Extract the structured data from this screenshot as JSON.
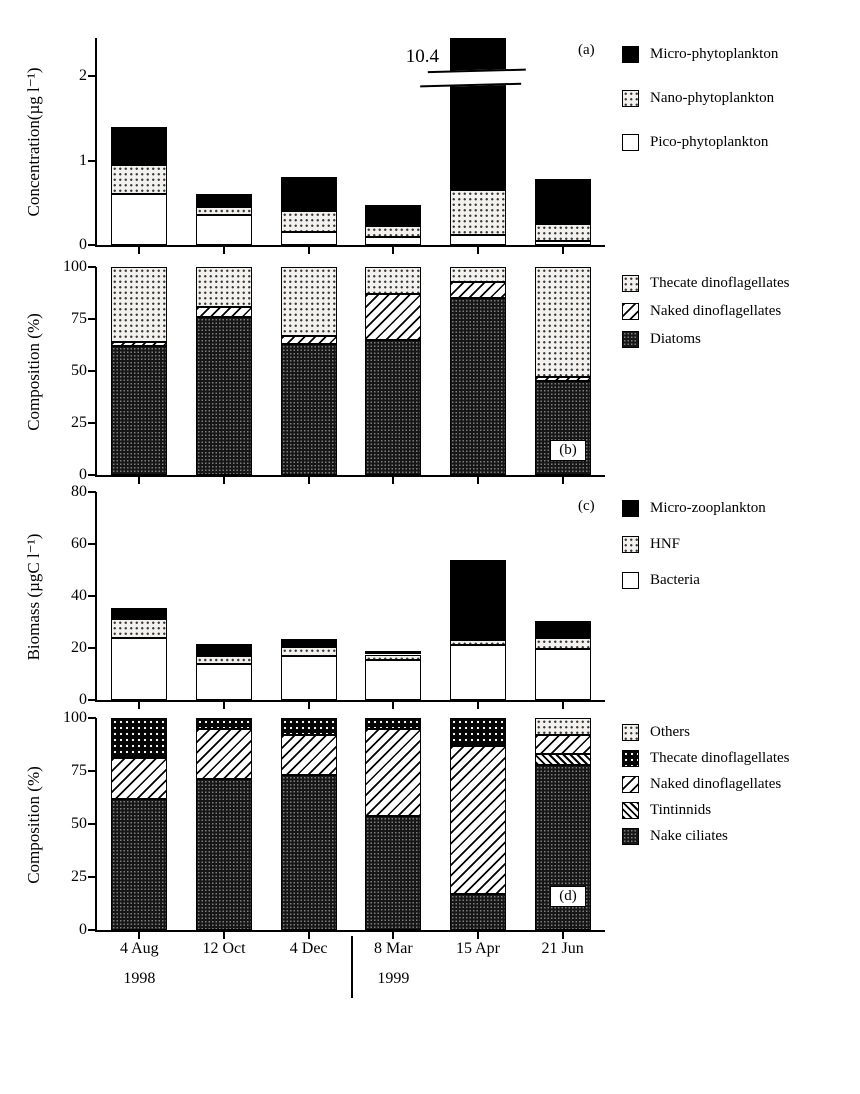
{
  "figure": {
    "background": "#ffffff",
    "panel_labels": {
      "a": "(a)",
      "b": "(b)",
      "c": "(c)",
      "d": "(d)"
    }
  },
  "x_axis": {
    "categories": [
      "4 Aug",
      "12 Oct",
      "4 Dec",
      "8 Mar",
      "15 Apr",
      "21 Jun"
    ],
    "year_groups": [
      {
        "label": "1998",
        "anchor_category_index": 0
      },
      {
        "label": "1999",
        "anchor_category_index": 3
      }
    ]
  },
  "chart_data": [
    {
      "type": "bar",
      "stacked": true,
      "panel": "a",
      "ylabel": "Concentration(µg l⁻¹)",
      "ylim": [
        0,
        2.45
      ],
      "yticks": [
        0,
        1,
        2
      ],
      "grid": false,
      "legend_position": "right",
      "categories": [
        "4 Aug",
        "12 Oct",
        "4 Dec",
        "8 Mar",
        "15 Apr",
        "21 Jun"
      ],
      "series": [
        {
          "name": "Pico-phytoplankton",
          "pattern": "white",
          "values": [
            0.6,
            0.35,
            0.15,
            0.1,
            0.12,
            0.05
          ]
        },
        {
          "name": "Nano-phytoplankton",
          "pattern": "stipple",
          "values": [
            0.35,
            0.1,
            0.25,
            0.12,
            0.53,
            0.2
          ]
        },
        {
          "name": "Micro-phytoplankton",
          "pattern": "black",
          "values": [
            0.45,
            0.15,
            0.4,
            0.25,
            9.75,
            0.53
          ]
        }
      ],
      "annotations": [
        {
          "type": "axis-break",
          "text": "10.4",
          "category": "15 Apr",
          "note": "15 Apr total concentration is 10.4, exceeds axis; bar drawn broken near 2"
        }
      ],
      "legend": [
        {
          "label": "Micro-phytoplankton",
          "pattern": "black"
        },
        {
          "label": "Nano-phytoplankton",
          "pattern": "stipple"
        },
        {
          "label": "Pico-phytoplankton",
          "pattern": "white"
        }
      ]
    },
    {
      "type": "bar",
      "stacked": true,
      "panel": "b",
      "ylabel": "Composition (%)",
      "ylim": [
        0,
        100
      ],
      "yticks": [
        0,
        25,
        50,
        75,
        100
      ],
      "grid": false,
      "legend_position": "right",
      "categories": [
        "4 Aug",
        "12 Oct",
        "4 Dec",
        "8 Mar",
        "15 Apr",
        "21 Jun"
      ],
      "series": [
        {
          "name": "Diatoms",
          "pattern": "dense",
          "values": [
            62,
            76,
            63,
            65,
            85,
            45
          ]
        },
        {
          "name": "Naked dinoflagellates",
          "pattern": "hatch",
          "values": [
            2,
            5,
            4,
            22,
            8,
            2
          ]
        },
        {
          "name": "Thecate dinoflagellates",
          "pattern": "stipple",
          "values": [
            36,
            19,
            33,
            13,
            7,
            53
          ]
        }
      ],
      "legend": [
        {
          "label": "Thecate dinoflagellates",
          "pattern": "stipple"
        },
        {
          "label": "Naked dinoflagellates",
          "pattern": "hatch"
        },
        {
          "label": "Diatoms",
          "pattern": "dense"
        }
      ]
    },
    {
      "type": "bar",
      "stacked": true,
      "panel": "c",
      "ylabel": "Biomass (µgC l⁻¹)",
      "ylim": [
        0,
        80
      ],
      "yticks": [
        0,
        20,
        40,
        60,
        80
      ],
      "grid": false,
      "legend_position": "right",
      "categories": [
        "4 Aug",
        "12 Oct",
        "4 Dec",
        "8 Mar",
        "15 Apr",
        "21 Jun"
      ],
      "series": [
        {
          "name": "Bacteria",
          "pattern": "white",
          "values": [
            24,
            14,
            17,
            15.5,
            21,
            19.5
          ]
        },
        {
          "name": "HNF",
          "pattern": "stipple",
          "values": [
            7,
            3,
            3.5,
            2,
            2,
            4.5
          ]
        },
        {
          "name": "Micro-zooplankton",
          "pattern": "black",
          "values": [
            4.5,
            4.5,
            3,
            1.5,
            31,
            6.5
          ]
        }
      ],
      "legend": [
        {
          "label": "Micro-zooplankton",
          "pattern": "black"
        },
        {
          "label": "HNF",
          "pattern": "stipple"
        },
        {
          "label": "Bacteria",
          "pattern": "white"
        }
      ]
    },
    {
      "type": "bar",
      "stacked": true,
      "panel": "d",
      "ylabel": "Composition (%)",
      "ylim": [
        0,
        100
      ],
      "yticks": [
        0,
        25,
        50,
        75,
        100
      ],
      "grid": false,
      "legend_position": "right",
      "categories": [
        "4 Aug",
        "12 Oct",
        "4 Dec",
        "8 Mar",
        "15 Apr",
        "21 Jun"
      ],
      "series": [
        {
          "name": "Nake ciliates",
          "pattern": "dense",
          "values": [
            62,
            71,
            73,
            54,
            17,
            78
          ]
        },
        {
          "name": "Tintinnids",
          "pattern": "hatch-dense",
          "values": [
            0,
            0,
            0,
            0,
            0,
            5
          ]
        },
        {
          "name": "Naked dinoflagellates",
          "pattern": "hatch",
          "values": [
            19,
            24,
            19,
            41,
            70,
            9
          ]
        },
        {
          "name": "Thecate dinoflagellates",
          "pattern": "darkdot",
          "values": [
            19,
            5,
            8,
            5,
            13,
            0
          ]
        },
        {
          "name": "Others",
          "pattern": "stipple",
          "values": [
            0,
            0,
            0,
            0,
            0,
            8
          ]
        }
      ],
      "legend": [
        {
          "label": "Others",
          "pattern": "stipple"
        },
        {
          "label": "Thecate dinoflagellates",
          "pattern": "darkdot"
        },
        {
          "label": "Naked dinoflagellates",
          "pattern": "hatch"
        },
        {
          "label": "Tintinnids",
          "pattern": "hatch-dense"
        },
        {
          "label": "Nake ciliates",
          "pattern": "dense"
        }
      ]
    }
  ]
}
